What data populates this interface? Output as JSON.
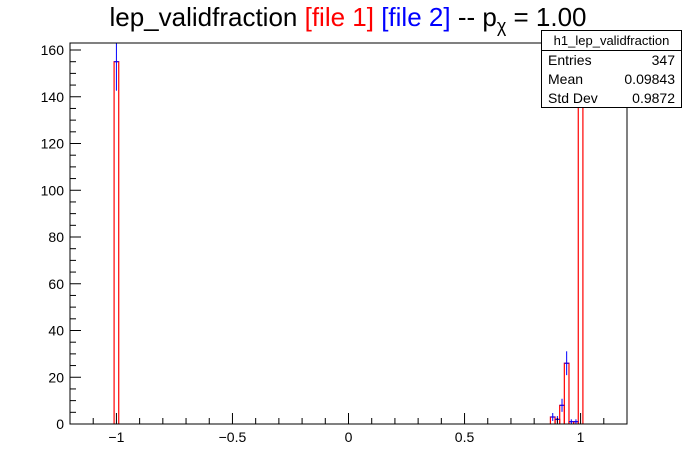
{
  "title": {
    "main": "lep_validfraction",
    "file1": "[file 1]",
    "file2": "[file 2]",
    "sep": "-- p",
    "sub": "χ",
    "eq": "= 1.00"
  },
  "stats": {
    "name": "h1_lep_validfraction",
    "rows": [
      {
        "label": "Entries",
        "value": "347"
      },
      {
        "label": "Mean",
        "value": "0.09843"
      },
      {
        "label": "Std Dev",
        "value": "0.9872"
      }
    ]
  },
  "colors": {
    "file1": "#ff0000",
    "file2": "#0000ff"
  },
  "chart_data": {
    "type": "histogram",
    "xlim": [
      -1.2,
      1.2
    ],
    "ylim": [
      0,
      163
    ],
    "bin_width": 0.02,
    "xticks": [
      -1,
      -0.5,
      0,
      0.5,
      1
    ],
    "xtick_labels": [
      "−1",
      "−0.5",
      "0",
      "0.5",
      "1"
    ],
    "yticks": [
      0,
      20,
      40,
      60,
      80,
      100,
      120,
      140,
      160
    ],
    "ytick_labels": [
      "0",
      "20",
      "40",
      "60",
      "80",
      "100",
      "120",
      "140",
      "160"
    ],
    "series": [
      {
        "name": "file 1",
        "color": "#ff0000",
        "bins": [
          {
            "x": -1.0,
            "y": 155
          },
          {
            "x": 0.88,
            "y": 3
          },
          {
            "x": 0.9,
            "y": 2
          },
          {
            "x": 0.92,
            "y": 8
          },
          {
            "x": 0.94,
            "y": 26
          },
          {
            "x": 0.96,
            "y": 1
          },
          {
            "x": 0.98,
            "y": 1
          },
          {
            "x": 1.0,
            "y": 152
          }
        ]
      },
      {
        "name": "file 2",
        "color": "#0000ff",
        "bins": [
          {
            "x": -1.0,
            "y": 155,
            "err": 12.4
          },
          {
            "x": 0.88,
            "y": 3,
            "err": 1.7
          },
          {
            "x": 0.9,
            "y": 2,
            "err": 1.4
          },
          {
            "x": 0.92,
            "y": 8,
            "err": 2.8
          },
          {
            "x": 0.94,
            "y": 26,
            "err": 5.1
          },
          {
            "x": 0.96,
            "y": 1,
            "err": 1.0
          },
          {
            "x": 0.98,
            "y": 1,
            "err": 1.0
          },
          {
            "x": 1.0,
            "y": 152,
            "err": 12.3
          }
        ]
      }
    ]
  }
}
